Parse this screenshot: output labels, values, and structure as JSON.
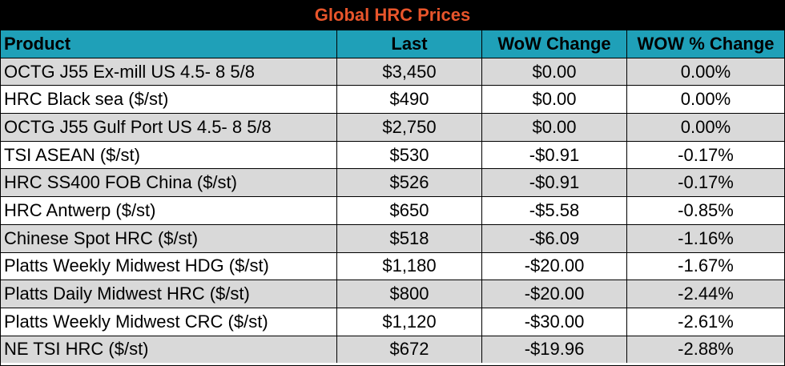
{
  "title": "Global HRC Prices",
  "columns": [
    "Product",
    "Last",
    "WoW Change",
    "WOW % Change"
  ],
  "rows": [
    {
      "product": "OCTG J55 Ex-mill US 4.5- 8 5/8",
      "last": "$3,450",
      "wow": "$0.00",
      "pct": "0.00%"
    },
    {
      "product": "HRC Black sea ($/st)",
      "last": "$490",
      "wow": "$0.00",
      "pct": "0.00%"
    },
    {
      "product": "OCTG J55 Gulf Port US 4.5- 8 5/8",
      "last": "$2,750",
      "wow": "$0.00",
      "pct": "0.00%"
    },
    {
      "product": "TSI ASEAN ($/st)",
      "last": "$530",
      "wow": "-$0.91",
      "pct": "-0.17%"
    },
    {
      "product": "HRC SS400 FOB China ($/st)",
      "last": "$526",
      "wow": "-$0.91",
      "pct": "-0.17%"
    },
    {
      "product": "HRC Antwerp ($/st)",
      "last": "$650",
      "wow": "-$5.58",
      "pct": "-0.85%"
    },
    {
      "product": "Chinese Spot HRC ($/st)",
      "last": "$518",
      "wow": "-$6.09",
      "pct": "-1.16%"
    },
    {
      "product": "Platts Weekly Midwest HDG ($/st)",
      "last": "$1,180",
      "wow": "-$20.00",
      "pct": "-1.67%"
    },
    {
      "product": "Platts Daily Midwest HRC ($/st)",
      "last": "$800",
      "wow": "-$20.00",
      "pct": "-2.44%"
    },
    {
      "product": "Platts Weekly Midwest CRC ($/st)",
      "last": "$1,120",
      "wow": "-$30.00",
      "pct": "-2.61%"
    },
    {
      "product": "NE TSI HRC ($/st)",
      "last": "$672",
      "wow": "-$19.96",
      "pct": "-2.88%"
    }
  ],
  "colors": {
    "title_bg": "#000000",
    "title_text": "#e8552b",
    "header_bg": "#1fa0b8",
    "stripe": "#d9d9d9"
  }
}
